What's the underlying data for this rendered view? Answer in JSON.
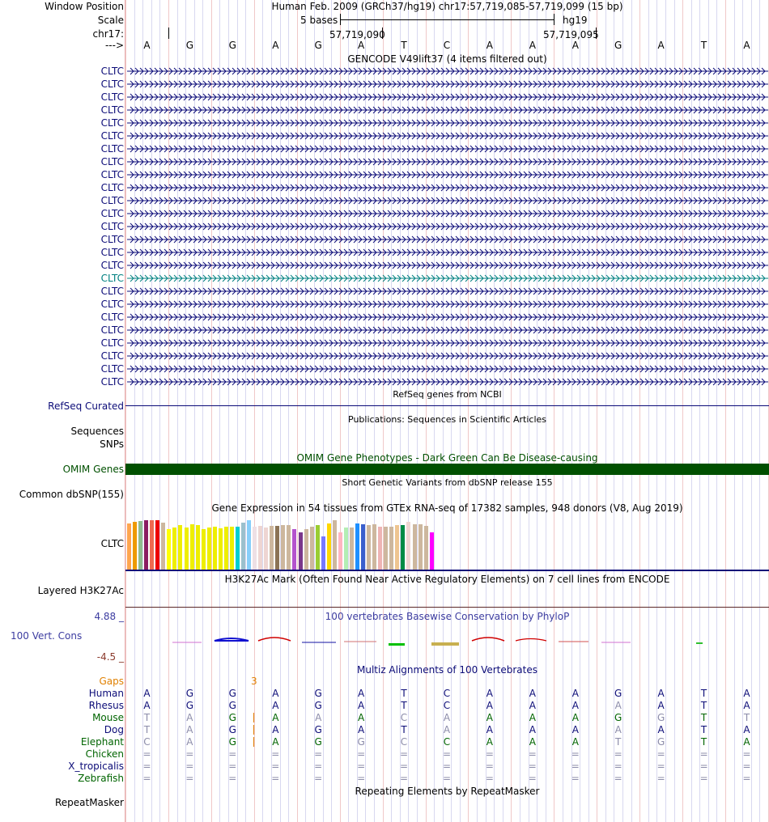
{
  "header": {
    "window_position_label": "Window Position",
    "scale_label": "Scale",
    "chrom_label": "chr17:",
    "strand_label": "--->",
    "assembly_title": "Human Feb. 2009 (GRCh37/hg19)   chr17:57,719,085-57,719,099 (15 bp)",
    "scale_text": "5 bases",
    "scale_db": "hg19",
    "pos1": "57,719,090",
    "pos2": "57,719,095"
  },
  "sequence": [
    "A",
    "G",
    "G",
    "A",
    "G",
    "A",
    "T",
    "C",
    "A",
    "A",
    "A",
    "G",
    "A",
    "T",
    "A"
  ],
  "gencode": {
    "title": "GENCODE V49lift37 (4 items filtered out)",
    "gene_labels": [
      "CLTC",
      "CLTC",
      "CLTC",
      "CLTC",
      "CLTC",
      "CLTC",
      "CLTC",
      "CLTC",
      "CLTC",
      "CLTC",
      "CLTC",
      "CLTC",
      "CLTC",
      "CLTC",
      "CLTC",
      "CLTC",
      "CLTC",
      "CLTC",
      "CLTC",
      "CLTC",
      "CLTC",
      "CLTC",
      "CLTC",
      "CLTC",
      "CLTC"
    ],
    "highlight_index": 16,
    "color": "#0c0c78",
    "highlight_color": "#008080"
  },
  "refseq": {
    "title": "RefSeq genes from NCBI",
    "label": "RefSeq Curated"
  },
  "publications": {
    "title": "Publications: Sequences in Scientific Articles",
    "label1": "Sequences",
    "label2": "SNPs"
  },
  "omim": {
    "title": "OMIM Gene Phenotypes - Dark Green Can Be Disease-causing",
    "label": "OMIM Genes",
    "color": "#005000"
  },
  "dbsnp": {
    "title": "Short Genetic Variants from dbSNP release 155",
    "label": "Common dbSNP(155)"
  },
  "gtex": {
    "title": "Gene Expression in 54 tissues from GTEx RNA-seq of 17382 samples, 948 donors (V8, Aug 2019)",
    "label": "CLTC",
    "values": [
      0.82,
      0.84,
      0.86,
      0.87,
      0.87,
      0.87,
      0.83,
      0.71,
      0.74,
      0.78,
      0.75,
      0.8,
      0.78,
      0.71,
      0.75,
      0.76,
      0.73,
      0.76,
      0.76,
      0.76,
      0.83,
      0.87,
      0.76,
      0.77,
      0.75,
      0.77,
      0.77,
      0.78,
      0.78,
      0.71,
      0.66,
      0.71,
      0.76,
      0.78,
      0.58,
      0.82,
      0.87,
      0.66,
      0.75,
      0.74,
      0.82,
      0.8,
      0.78,
      0.8,
      0.76,
      0.76,
      0.76,
      0.79,
      0.78,
      0.84,
      0.8,
      0.8,
      0.77,
      0.66
    ],
    "colors": [
      "#FFA54F",
      "#EE9A00",
      "#8FBC8F",
      "#8B1C62",
      "#EE6A50",
      "#EE0000",
      "#CDB79E",
      "#FFFF00",
      "#EEEE00",
      "#EEEE00",
      "#EEEE00",
      "#EEEE00",
      "#EEEE00",
      "#EEEE00",
      "#EEEE00",
      "#EEEE00",
      "#EEEE00",
      "#EEEE00",
      "#EEEE00",
      "#00CED1",
      "#9AC0CD",
      "#87CEFA",
      "#EEE0E5",
      "#EED5D2",
      "#EED5D2",
      "#CDB79E",
      "#8B7355",
      "#CDB79E",
      "#CDB79E",
      "#B452CD",
      "#7A378B",
      "#CDB79E",
      "#CDB79E",
      "#9ACD32",
      "#7777FF",
      "#FFD700",
      "#CDB79E",
      "#FFB6C1",
      "#B4EEB4",
      "#CDB79E",
      "#1E90FF",
      "#3A5FCD",
      "#CDB79E",
      "#CDB79E",
      "#EEB4B4",
      "#CDB79E",
      "#CDB79E",
      "#EEC591",
      "#008B45",
      "#EED5D2",
      "#CDB79E",
      "#CDB79E",
      "#CDB79E",
      "#FF00FF"
    ]
  },
  "h3k27ac": {
    "title": "H3K27Ac Mark (Often Found Near Active Regulatory Elements) on 7 cell lines from ENCODE",
    "label": "Layered H3K27Ac"
  },
  "phylop": {
    "title": "100 vertebrates Basewise Conservation by PhyloP",
    "label": "100 Vert. Cons",
    "max_label": "4.88 _",
    "min_label": "-4.5 _"
  },
  "multiz": {
    "title": "Multiz Alignments of 100 Vertebrates",
    "gaps_label": "Gaps",
    "gap_count": "3",
    "species": [
      {
        "name": "Human",
        "color": "#0c0c78",
        "bases": [
          "A",
          "G",
          "G",
          "A",
          "G",
          "A",
          "T",
          "C",
          "A",
          "A",
          "A",
          "G",
          "A",
          "T",
          "A"
        ],
        "dim": []
      },
      {
        "name": "Rhesus",
        "color": "#0c0c78",
        "bases": [
          "A",
          "G",
          "G",
          "A",
          "G",
          "A",
          "T",
          "C",
          "A",
          "A",
          "A",
          "A",
          "A",
          "T",
          "A"
        ],
        "dim": [
          11
        ]
      },
      {
        "name": "Mouse",
        "color": "#006400",
        "bases": [
          "T",
          "A",
          "G",
          "A",
          "A",
          "A",
          "C",
          "A",
          "A",
          "A",
          "A",
          "G",
          "G",
          "T",
          "T"
        ],
        "dim": [
          0,
          1,
          4,
          6,
          7,
          12,
          14
        ]
      },
      {
        "name": "Dog",
        "color": "#0c0c78",
        "bases": [
          "T",
          "A",
          "G",
          "A",
          "G",
          "A",
          "T",
          "A",
          "A",
          "A",
          "A",
          "A",
          "A",
          "T",
          "A"
        ],
        "dim": [
          0,
          1,
          7,
          11
        ]
      },
      {
        "name": "Elephant",
        "color": "#006400",
        "bases": [
          "C",
          "A",
          "G",
          "A",
          "G",
          "G",
          "C",
          "C",
          "A",
          "A",
          "A",
          "T",
          "G",
          "T",
          "A"
        ],
        "dim": [
          0,
          1,
          5,
          6,
          11,
          12
        ]
      },
      {
        "name": "Chicken",
        "color": "#006400",
        "bases": [
          "=",
          "=",
          "=",
          "=",
          "=",
          "=",
          "=",
          "=",
          "=",
          "=",
          "=",
          "=",
          "=",
          "=",
          "="
        ],
        "dim": [
          0,
          1,
          2,
          3,
          4,
          5,
          6,
          7,
          8,
          9,
          10,
          11,
          12,
          13,
          14
        ]
      },
      {
        "name": "X_tropicalis",
        "color": "#0c0c78",
        "bases": [
          "=",
          "=",
          "=",
          "=",
          "=",
          "=",
          "=",
          "=",
          "=",
          "=",
          "=",
          "=",
          "=",
          "=",
          "="
        ],
        "dim": [
          0,
          1,
          2,
          3,
          4,
          5,
          6,
          7,
          8,
          9,
          10,
          11,
          12,
          13,
          14
        ]
      },
      {
        "name": "Zebrafish",
        "color": "#006400",
        "bases": [
          "=",
          "=",
          "=",
          "=",
          "=",
          "=",
          "=",
          "=",
          "=",
          "=",
          "=",
          "=",
          "=",
          "=",
          "="
        ],
        "dim": [
          0,
          1,
          2,
          3,
          4,
          5,
          6,
          7,
          8,
          9,
          10,
          11,
          12,
          13,
          14
        ]
      }
    ]
  },
  "repeatmasker": {
    "title": "Repeating Elements by RepeatMasker",
    "label": "RepeatMasker"
  }
}
